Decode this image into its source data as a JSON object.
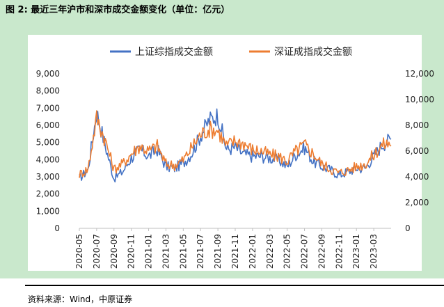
{
  "figure": {
    "title": "图 2: 最近三年沪市和深市成交金额变化（单位：亿元）",
    "source": "资料来源：Wind，中原证券"
  },
  "colors": {
    "background_panel": "#c9e8cc",
    "series_sh": "#4472c4",
    "series_sz": "#ed7d31",
    "axis_text": "#222222",
    "gridline": "#d9d9d9"
  },
  "chart_data": {
    "type": "line",
    "title": "",
    "x": [
      "2020-05",
      "2020-06",
      "2020-07",
      "2020-08",
      "2020-09",
      "2020-10",
      "2020-11",
      "2020-12",
      "2021-01",
      "2021-02",
      "2021-03",
      "2021-04",
      "2021-05",
      "2021-06",
      "2021-07",
      "2021-08",
      "2021-09",
      "2021-10",
      "2021-11",
      "2021-12",
      "2022-01",
      "2022-02",
      "2022-03",
      "2022-04",
      "2022-05",
      "2022-06",
      "2022-07",
      "2022-08",
      "2022-09",
      "2022-10",
      "2022-11",
      "2022-12",
      "2023-01",
      "2023-02",
      "2023-03",
      "2023-04",
      "2023-05"
    ],
    "x_tick_labels": [
      "2020-05",
      "2020-07",
      "2020-09",
      "2020-11",
      "2021-01",
      "2021-03",
      "2021-05",
      "2021-07",
      "2021-09",
      "2021-11",
      "2022-01",
      "2022-03",
      "2022-05",
      "2022-07",
      "2022-09",
      "2022-11",
      "2023-01",
      "2023-03"
    ],
    "series": [
      {
        "name": "上证综指成交金额",
        "axis": "left",
        "values": [
          2900,
          3400,
          6800,
          4800,
          2900,
          3300,
          4100,
          4600,
          4200,
          4600,
          3600,
          3500,
          3800,
          4400,
          5400,
          6300,
          6600,
          4600,
          4700,
          4300,
          4200,
          4200,
          4100,
          4000,
          3600,
          4300,
          4700,
          3900,
          3600,
          3400,
          3100,
          3300,
          3500,
          3500,
          4200,
          4900,
          5200
        ]
      },
      {
        "name": "深证成指成交金额",
        "axis": "right",
        "values": [
          4200,
          4600,
          8600,
          6800,
          4600,
          5000,
          5800,
          6400,
          6000,
          6400,
          5000,
          4900,
          5300,
          6300,
          7300,
          7700,
          7600,
          6400,
          6800,
          6600,
          6100,
          6000,
          5700,
          5600,
          5200,
          6000,
          6500,
          5800,
          5000,
          4600,
          4300,
          4500,
          4800,
          5000,
          5700,
          6500,
          6600
        ]
      }
    ],
    "y_left": {
      "ylim": [
        0,
        9000
      ],
      "ticks": [
        "0",
        "1,000",
        "2,000",
        "3,000",
        "4,000",
        "5,000",
        "6,000",
        "7,000",
        "8,000",
        "9,000"
      ]
    },
    "y_right": {
      "ylim": [
        0,
        12000
      ],
      "ticks": [
        "0",
        "2,000",
        "4,000",
        "6,000",
        "8,000",
        "10,000",
        "12,000"
      ]
    },
    "grid": false,
    "legend_position": "top-center"
  }
}
